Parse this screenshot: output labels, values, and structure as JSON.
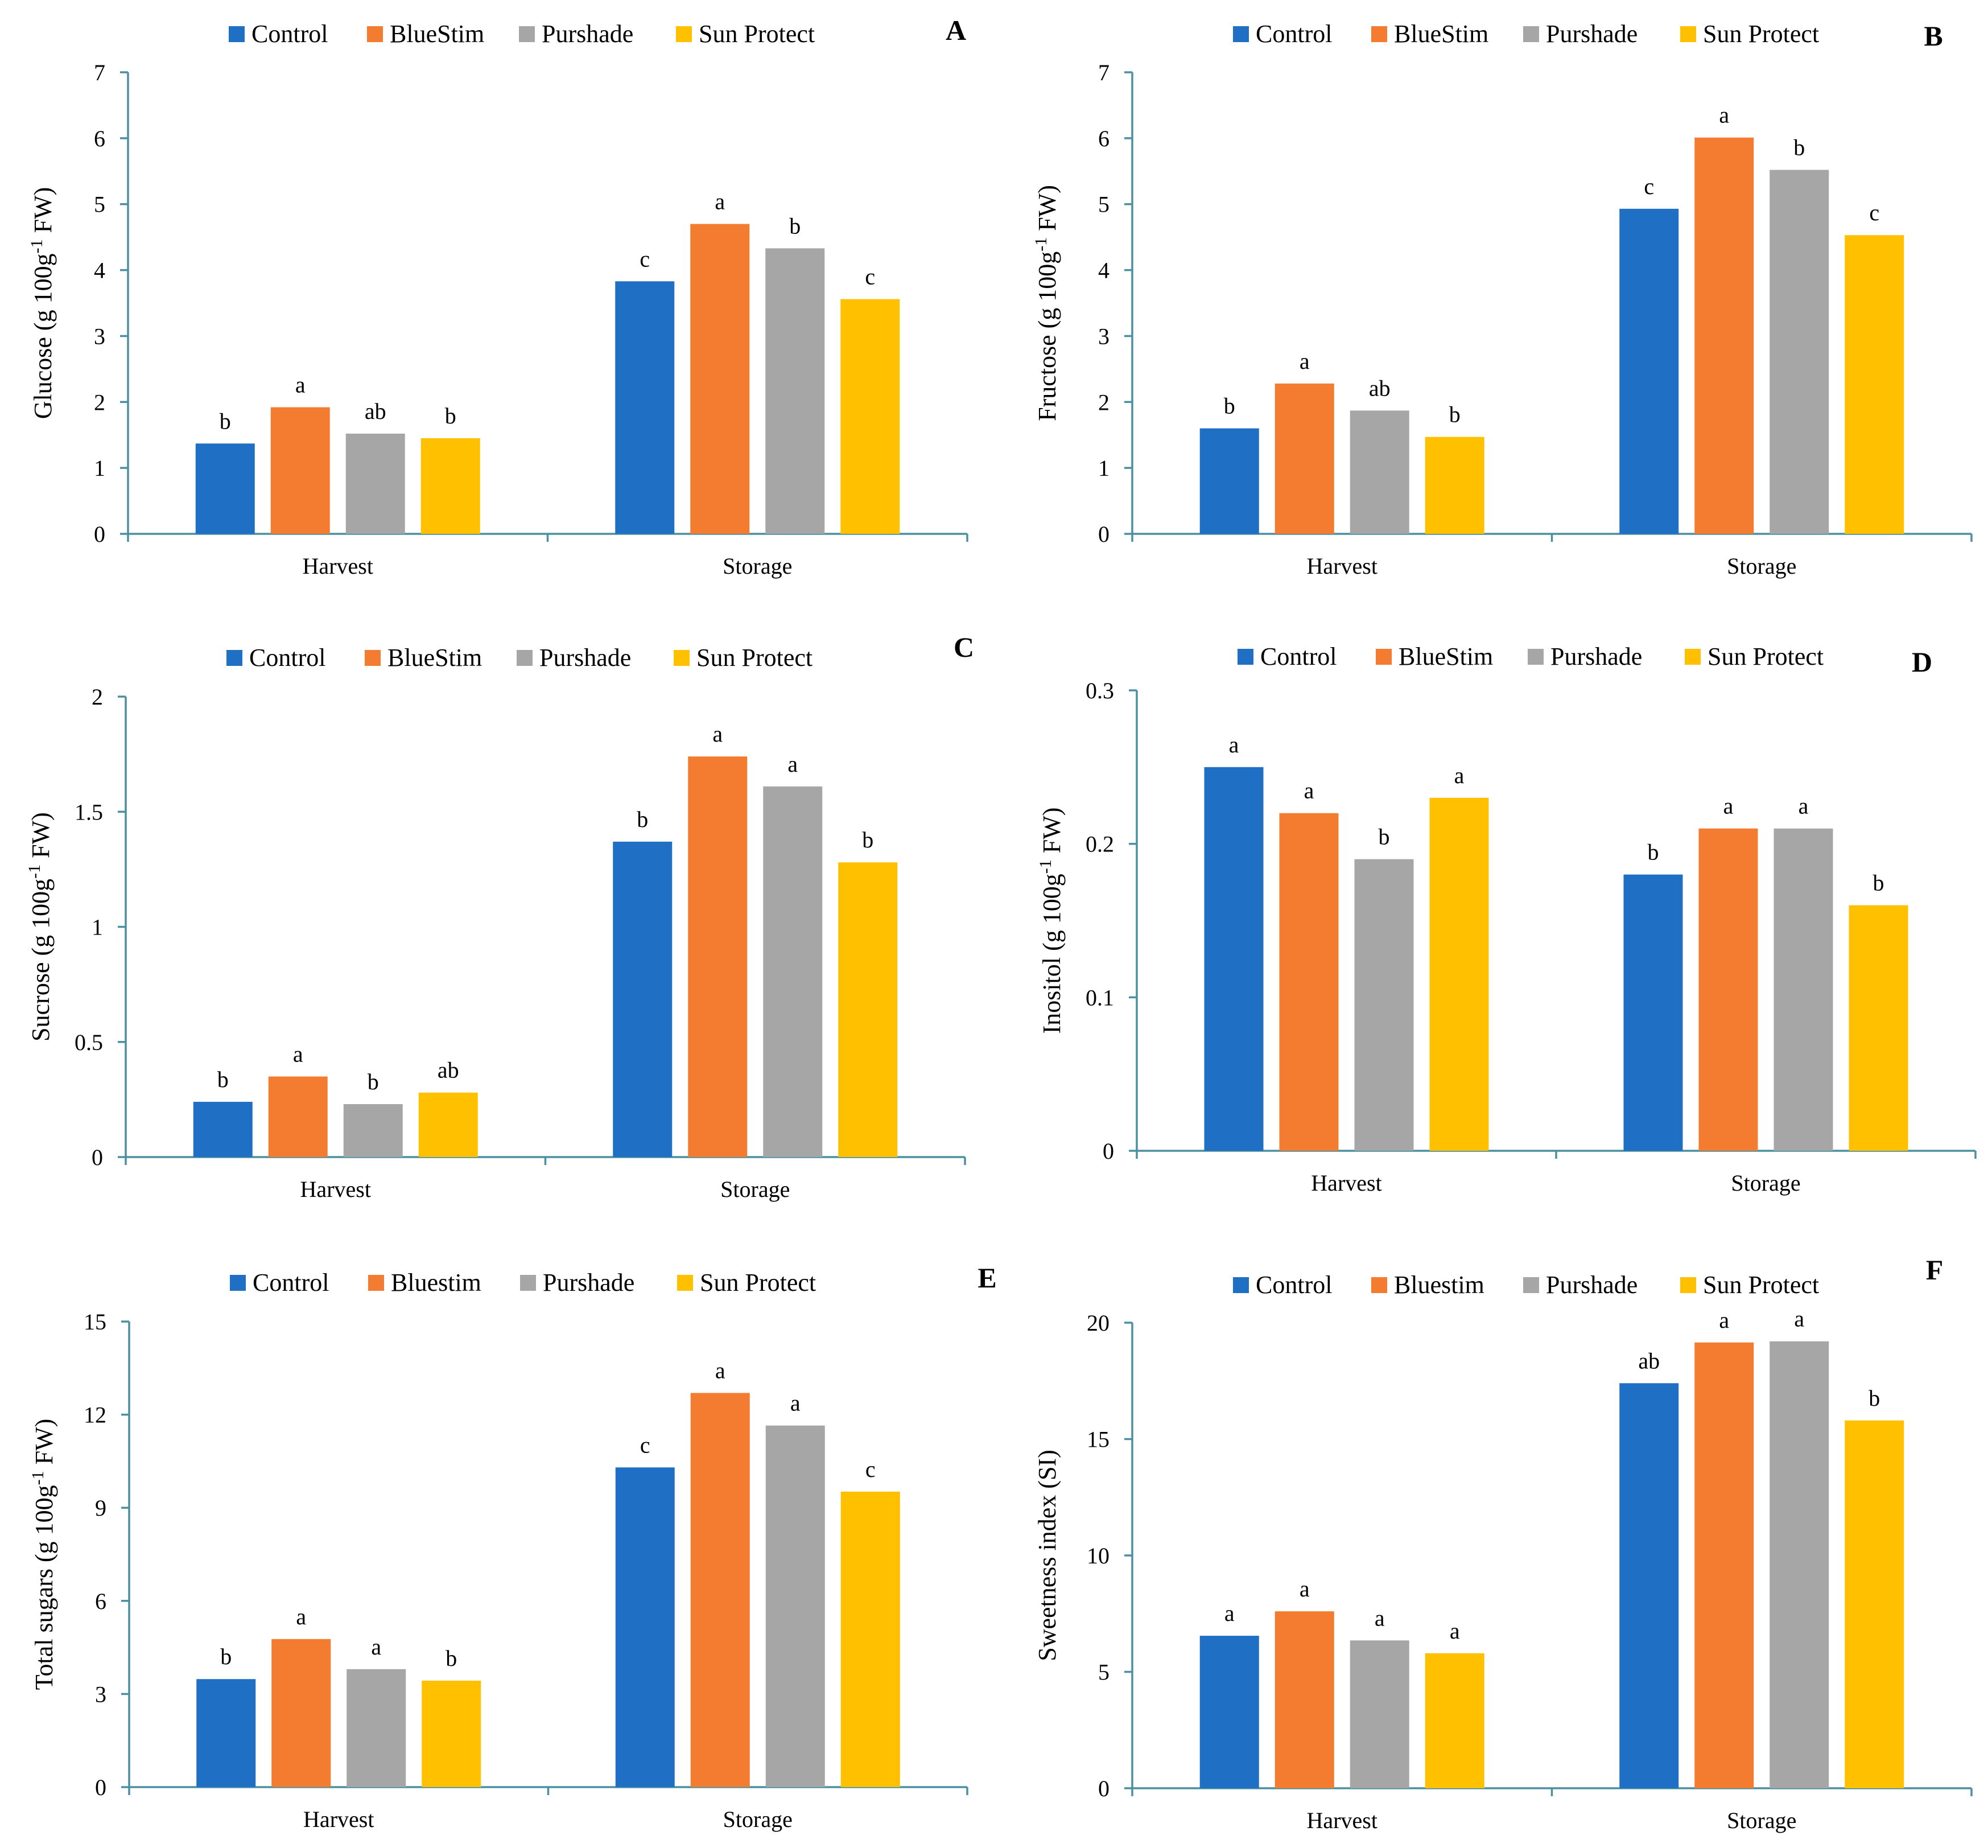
{
  "colors": {
    "Control": "#1f6fc4",
    "BlueStim": "#f47c30",
    "Purshade": "#a6a6a6",
    "SunProtect": "#ffc000",
    "axis": "#4a90a0"
  },
  "chart_data": [
    {
      "type": "bar",
      "panel": "A",
      "categories": [
        "Harvest",
        "Storage"
      ],
      "legend": [
        "Control",
        "BlueStim",
        "Purshade",
        "Sun Protect"
      ],
      "ylabel_main": "Glucose (g 100g",
      "ylabel_sup": "-1",
      "ylabel_tail": " FW)",
      "ylim": [
        0,
        7
      ],
      "yticks": [
        "0",
        "1",
        "2",
        "3",
        "4",
        "5",
        "6",
        "7"
      ],
      "series": [
        {
          "name": "Control",
          "values": [
            1.37,
            3.83
          ],
          "letters": [
            "b",
            "c"
          ]
        },
        {
          "name": "BlueStim",
          "values": [
            1.92,
            4.7
          ],
          "letters": [
            "a",
            "a"
          ]
        },
        {
          "name": "Purshade",
          "values": [
            1.52,
            4.33
          ],
          "letters": [
            "ab",
            "b"
          ]
        },
        {
          "name": "Sun Protect",
          "values": [
            1.45,
            3.56
          ],
          "letters": [
            "b",
            "c"
          ]
        }
      ]
    },
    {
      "type": "bar",
      "panel": "B",
      "categories": [
        "Harvest",
        "Storage"
      ],
      "legend": [
        "Control",
        "BlueStim",
        "Purshade",
        "Sun Protect"
      ],
      "ylabel_main": "Fructose (g 100g",
      "ylabel_sup": "-1",
      "ylabel_tail": " FW)",
      "ylim": [
        0,
        7
      ],
      "yticks": [
        "0",
        "1",
        "2",
        "3",
        "4",
        "5",
        "6",
        "7"
      ],
      "series": [
        {
          "name": "Control",
          "values": [
            1.6,
            4.93
          ],
          "letters": [
            "b",
            "c"
          ]
        },
        {
          "name": "BlueStim",
          "values": [
            2.28,
            6.01
          ],
          "letters": [
            "a",
            "a"
          ]
        },
        {
          "name": "Purshade",
          "values": [
            1.87,
            5.52
          ],
          "letters": [
            "ab",
            "b"
          ]
        },
        {
          "name": "Sun Protect",
          "values": [
            1.47,
            4.53
          ],
          "letters": [
            "b",
            "c"
          ]
        }
      ]
    },
    {
      "type": "bar",
      "panel": "C",
      "categories": [
        "Harvest",
        "Storage"
      ],
      "legend": [
        "Control",
        "BlueStim",
        "Purshade",
        "Sun Protect"
      ],
      "ylabel_main": "Sucrose (g 100g",
      "ylabel_sup": "-1",
      "ylabel_tail": " FW)",
      "ylim": [
        0,
        2
      ],
      "yticks": [
        "0",
        "0.5",
        "1",
        "1.5",
        "2"
      ],
      "series": [
        {
          "name": "Control",
          "values": [
            0.24,
            1.37
          ],
          "letters": [
            "b",
            "b"
          ]
        },
        {
          "name": "BlueStim",
          "values": [
            0.35,
            1.74
          ],
          "letters": [
            "a",
            "a"
          ]
        },
        {
          "name": "Purshade",
          "values": [
            0.23,
            1.61
          ],
          "letters": [
            "b",
            "a"
          ]
        },
        {
          "name": "Sun Protect",
          "values": [
            0.28,
            1.28
          ],
          "letters": [
            "ab",
            "b"
          ]
        }
      ]
    },
    {
      "type": "bar",
      "panel": "D",
      "categories": [
        "Harvest",
        "Storage"
      ],
      "legend": [
        "Control",
        "BlueStim",
        "Purshade",
        "Sun Protect"
      ],
      "ylabel_main": "Inositol (g 100g",
      "ylabel_sup": "-1",
      "ylabel_tail": " FW)",
      "ylim": [
        0,
        0.3
      ],
      "yticks": [
        "0",
        "0.1",
        "0.2",
        "0.3"
      ],
      "series": [
        {
          "name": "Control",
          "values": [
            0.25,
            0.18
          ],
          "letters": [
            "a",
            "b"
          ]
        },
        {
          "name": "BlueStim",
          "values": [
            0.22,
            0.21
          ],
          "letters": [
            "a",
            "a"
          ]
        },
        {
          "name": "Purshade",
          "values": [
            0.19,
            0.21
          ],
          "letters": [
            "b",
            "a"
          ]
        },
        {
          "name": "Sun Protect",
          "values": [
            0.23,
            0.16
          ],
          "letters": [
            "a",
            "b"
          ]
        }
      ]
    },
    {
      "type": "bar",
      "panel": "E",
      "categories": [
        "Harvest",
        "Storage"
      ],
      "legend": [
        "Control",
        "Bluestim",
        "Purshade",
        "Sun Protect"
      ],
      "ylabel_main": "Total sugars (g 100g",
      "ylabel_sup": "-1",
      "ylabel_tail": " FW)",
      "ylim": [
        0,
        15
      ],
      "yticks": [
        "0",
        "3",
        "6",
        "9",
        "12",
        "15"
      ],
      "series": [
        {
          "name": "Control",
          "values": [
            3.48,
            10.3
          ],
          "letters": [
            "b",
            "c"
          ]
        },
        {
          "name": "Bluestim",
          "values": [
            4.77,
            12.7
          ],
          "letters": [
            "a",
            "a"
          ]
        },
        {
          "name": "Purshade",
          "values": [
            3.8,
            11.65
          ],
          "letters": [
            "a",
            "a"
          ]
        },
        {
          "name": "Sun Protect",
          "values": [
            3.43,
            9.52
          ],
          "letters": [
            "b",
            "c"
          ]
        }
      ]
    },
    {
      "type": "bar",
      "panel": "F",
      "categories": [
        "Harvest",
        "Storage"
      ],
      "legend": [
        "Control",
        "Bluestim",
        "Purshade",
        "Sun Protect"
      ],
      "ylabel_main": "Sweetness index (SI)",
      "ylabel_sup": "",
      "ylabel_tail": "",
      "ylim": [
        0,
        20
      ],
      "yticks": [
        "0",
        "5",
        "10",
        "15",
        "20"
      ],
      "series": [
        {
          "name": "Control",
          "values": [
            6.55,
            17.4
          ],
          "letters": [
            "a",
            "ab"
          ]
        },
        {
          "name": "Bluestim",
          "values": [
            7.6,
            19.15
          ],
          "letters": [
            "a",
            "a"
          ]
        },
        {
          "name": "Purshade",
          "values": [
            6.35,
            19.2
          ],
          "letters": [
            "a",
            "a"
          ]
        },
        {
          "name": "Sun Protect",
          "values": [
            5.8,
            15.8
          ],
          "letters": [
            "a",
            "b"
          ]
        }
      ]
    }
  ]
}
